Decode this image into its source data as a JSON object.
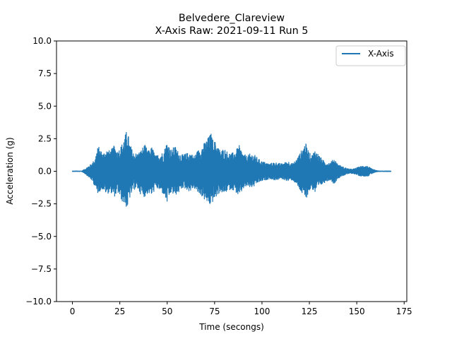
{
  "chart_data": {
    "type": "line",
    "title": "Belvedere_Clareview",
    "subtitle": "X-Axis Raw: 2021-09-11 Run 5",
    "xlabel": "Time (secongs)",
    "ylabel": "Acceleration (g)",
    "xlim": [
      -8.4,
      176.4
    ],
    "ylim": [
      -10.0,
      10.0
    ],
    "xticks": [
      0,
      25,
      50,
      75,
      100,
      125,
      150,
      175
    ],
    "xtick_labels": [
      "0",
      "25",
      "50",
      "75",
      "100",
      "125",
      "150",
      "175"
    ],
    "yticks": [
      -10.0,
      -7.5,
      -5.0,
      -2.5,
      0.0,
      2.5,
      5.0,
      7.5,
      10.0
    ],
    "ytick_labels": [
      "−10.0",
      "−7.5",
      "−5.0",
      "−2.5",
      "0.0",
      "2.5",
      "5.0",
      "7.5",
      "10.0"
    ],
    "grid": false,
    "legend_position": "top-right",
    "series": [
      {
        "name": "X-Axis",
        "color": "#1f77b4",
        "x_range": [
          0,
          168
        ],
        "envelope": {
          "t": [
            0,
            5,
            7,
            10,
            12,
            13,
            14,
            16,
            18,
            20,
            22,
            24,
            26,
            28,
            29,
            30,
            32,
            34,
            36,
            38,
            40,
            42,
            44,
            46,
            48,
            50,
            52,
            54,
            56,
            58,
            60,
            62,
            64,
            66,
            68,
            70,
            72,
            73,
            74,
            76,
            78,
            80,
            82,
            84,
            86,
            88,
            90,
            92,
            94,
            96,
            98,
            100,
            102,
            104,
            106,
            108,
            110,
            112,
            114,
            116,
            118,
            120,
            122,
            123,
            124,
            126,
            128,
            130,
            132,
            134,
            136,
            138,
            140,
            142,
            144,
            146,
            148,
            150,
            152,
            154,
            156,
            158,
            160,
            162,
            165,
            168
          ],
          "upper": [
            0.05,
            0.05,
            0.25,
            0.6,
            1.0,
            1.8,
            1.9,
            1.4,
            1.7,
            1.6,
            2.0,
            1.6,
            2.1,
            2.9,
            3.3,
            2.3,
            1.5,
            1.4,
            1.6,
            2.1,
            1.6,
            1.9,
            1.2,
            1.4,
            1.5,
            2.4,
            1.6,
            2.0,
            1.5,
            1.3,
            1.4,
            1.5,
            1.2,
            1.6,
            1.9,
            2.3,
            2.7,
            3.0,
            2.5,
            2.2,
            1.6,
            1.8,
            1.5,
            1.4,
            1.6,
            2.0,
            1.4,
            1.2,
            1.4,
            1.3,
            1.0,
            0.8,
            0.7,
            0.6,
            0.7,
            0.7,
            0.6,
            0.7,
            0.8,
            0.6,
            0.9,
            1.4,
            2.0,
            2.2,
            1.8,
            1.2,
            1.7,
            1.3,
            0.9,
            0.7,
            0.7,
            1.0,
            0.6,
            0.4,
            0.3,
            0.2,
            0.2,
            0.3,
            0.4,
            0.5,
            0.4,
            0.2,
            0.1,
            0.05,
            0.05,
            0.05
          ],
          "lower": [
            -0.05,
            -0.05,
            -0.25,
            -0.7,
            -1.2,
            -1.8,
            -1.6,
            -1.4,
            -1.8,
            -1.6,
            -2.0,
            -1.7,
            -2.3,
            -2.7,
            -2.9,
            -2.2,
            -1.5,
            -1.3,
            -1.8,
            -2.0,
            -1.7,
            -1.9,
            -1.3,
            -1.5,
            -1.8,
            -2.5,
            -1.7,
            -1.9,
            -1.7,
            -1.3,
            -1.4,
            -1.6,
            -1.3,
            -1.7,
            -1.9,
            -2.3,
            -2.6,
            -2.7,
            -2.4,
            -2.0,
            -1.6,
            -1.8,
            -1.5,
            -1.4,
            -1.6,
            -2.0,
            -1.4,
            -1.2,
            -1.3,
            -1.2,
            -0.9,
            -0.8,
            -0.7,
            -0.6,
            -0.7,
            -0.7,
            -0.6,
            -0.7,
            -0.8,
            -0.7,
            -1.0,
            -1.5,
            -2.0,
            -2.2,
            -1.9,
            -1.3,
            -1.7,
            -1.3,
            -1.0,
            -0.8,
            -0.7,
            -1.0,
            -0.6,
            -0.4,
            -0.3,
            -0.2,
            -0.2,
            -0.3,
            -0.4,
            -0.4,
            -0.4,
            -0.2,
            -0.1,
            -0.05,
            -0.05,
            -0.05
          ]
        }
      }
    ]
  }
}
